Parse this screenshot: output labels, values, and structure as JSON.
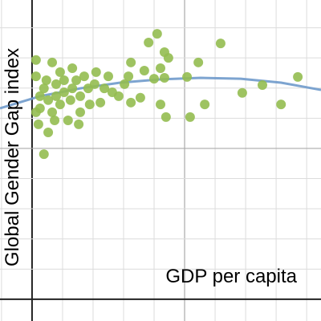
{
  "chart_data": {
    "type": "scatter",
    "x_label": "GDP per capita",
    "y_label": "Global Gender Gap index",
    "xlim": [
      -1.05,
      9.47
    ],
    "ylim": [
      -0.72,
      9.92
    ],
    "xticks": [
      -1,
      0,
      1,
      2,
      3,
      4,
      5,
      6,
      7,
      8,
      9
    ],
    "yticks": [
      0,
      1,
      2,
      3,
      4,
      5,
      6,
      7,
      8,
      9
    ],
    "major_xticks": [
      0,
      5
    ],
    "major_yticks": [
      0,
      5
    ],
    "grid": true,
    "points": {
      "color": "#93bd50",
      "x": [
        3.82,
        4.1,
        6.18,
        0.39,
        0.13,
        4.39,
        5.18,
        8.16,
        8.71,
        6.89,
        7.55,
        5.66,
        5.45,
        5.08,
        4.21,
        4.34,
        4.47,
        4.21,
        4.34,
        4.0,
        3.68,
        3.24,
        3.55,
        3.24,
        2.84,
        3.03,
        3.16,
        2.5,
        2.1,
        2.24,
        1.89,
        1.58,
        1.53,
        1.18,
        0.74,
        0.53,
        0.21,
        0.13,
        0.13,
        0.66,
        0.92,
        1.32,
        0.47,
        0.79,
        1.05,
        1.45,
        1.71,
        1.84,
        0.26,
        0.53,
        0.92,
        1.26,
        0.39,
        2.37,
        2.63,
        2.05,
        0.66,
        1.05,
        1.58,
        0.26,
        1.32,
        0.79
      ],
      "y": [
        8.51,
        8.8,
        8.48,
        4.81,
        7.93,
        6.04,
        6.04,
        6.46,
        7.37,
        6.84,
        7.1,
        6.46,
        7.85,
        7.37,
        6.46,
        8.19,
        8.0,
        7.66,
        7.34,
        7.31,
        7.58,
        7.85,
        6.68,
        6.52,
        6.73,
        7.13,
        7.39,
        7.39,
        7.53,
        6.52,
        6.46,
        6.2,
        5.8,
        5.93,
        5.93,
        5.53,
        5.8,
        6.2,
        7.39,
        7.85,
        7.53,
        7.66,
        7.26,
        7.13,
        6.86,
        7.26,
        7.39,
        6.99,
        6.73,
        6.6,
        6.46,
        6.6,
        6.99,
        6.99,
        6.86,
        7.13,
        6.2,
        7.26,
        6.73,
        6.33,
        6.99,
        6.73
      ]
    },
    "curve": {
      "color": "#6f9acb",
      "x": [
        -1.05,
        0.26,
        1.58,
        2.89,
        4.21,
        5.53,
        6.84,
        8.16,
        9.47
      ],
      "y": [
        6.33,
        6.73,
        6.99,
        7.18,
        7.29,
        7.34,
        7.31,
        7.18,
        6.94
      ]
    }
  }
}
